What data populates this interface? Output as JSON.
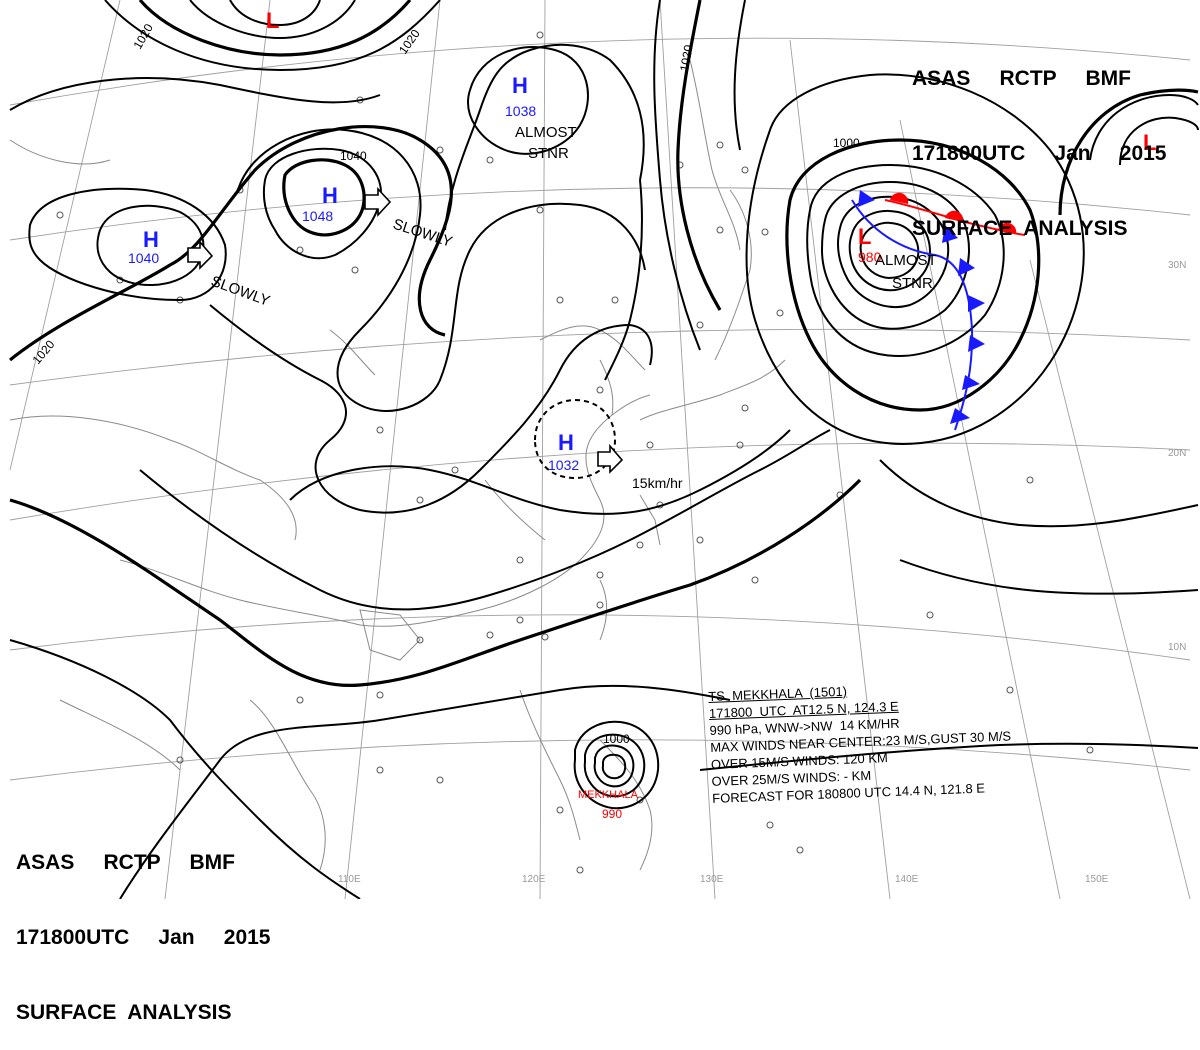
{
  "header_top": {
    "line1": "ASAS     RCTP     BMF",
    "line2": "171800UTC     Jan     2015",
    "line3": "SURFACE  ANALYSIS"
  },
  "header_bottom": {
    "line1": "ASAS     RCTP     BMF",
    "line2": "171800UTC     Jan     2015",
    "line3": "SURFACE  ANALYSIS"
  },
  "pressure_centers": [
    {
      "id": "L-north",
      "type": "L",
      "value": ""
    },
    {
      "id": "H-west",
      "type": "H",
      "value": "1040"
    },
    {
      "id": "H-mongolia",
      "type": "H",
      "value": "1048"
    },
    {
      "id": "H-north",
      "type": "H",
      "value": "1038"
    },
    {
      "id": "H-china",
      "type": "H",
      "value": "1032"
    },
    {
      "id": "L-pacific",
      "type": "L",
      "value": "980"
    },
    {
      "id": "L-northeast",
      "type": "L",
      "value": ""
    },
    {
      "id": "L-typhoon",
      "type": "L",
      "value": "990"
    }
  ],
  "motion_labels": {
    "slowly_west": "SLOWLY",
    "slowly_east": "SLOWLY",
    "almost_stnr_north": [
      "ALMOST",
      "STNR"
    ],
    "almost_stnr_pacific": [
      "ALMOST",
      "STNR"
    ],
    "speed_china": "15km/hr"
  },
  "isobar_labels": [
    "1020",
    "1020",
    "1020",
    "1040",
    "1020",
    "1000",
    "1000"
  ],
  "typhoon_name_label": "MEKKHALA",
  "latitude_labels": [
    "30N",
    "20N",
    "10N"
  ],
  "longitude_labels": [
    "110E",
    "120E",
    "130E",
    "140E",
    "150E"
  ],
  "typhoon": {
    "line1": "TS  MEKKHALA  (1501)",
    "line2": "171800  UTC  AT12.5 N, 124.3 E",
    "line3": "990 hPa, WNW->NW  14 KM/HR",
    "line4": "MAX WINDS NEAR CENTER:23 M/S,GUST 30 M/S",
    "line5": "OVER 15M/S WINDS: 120 KM",
    "line6": "OVER 25M/S WINDS: - KM",
    "line7": "FORECAST FOR 180800 UTC 14.4 N, 121.8 E"
  },
  "colors": {
    "high": "#1a1aff",
    "low": "#ff0000",
    "line": "#000000",
    "coast": "#888888",
    "grid": "#999999"
  }
}
